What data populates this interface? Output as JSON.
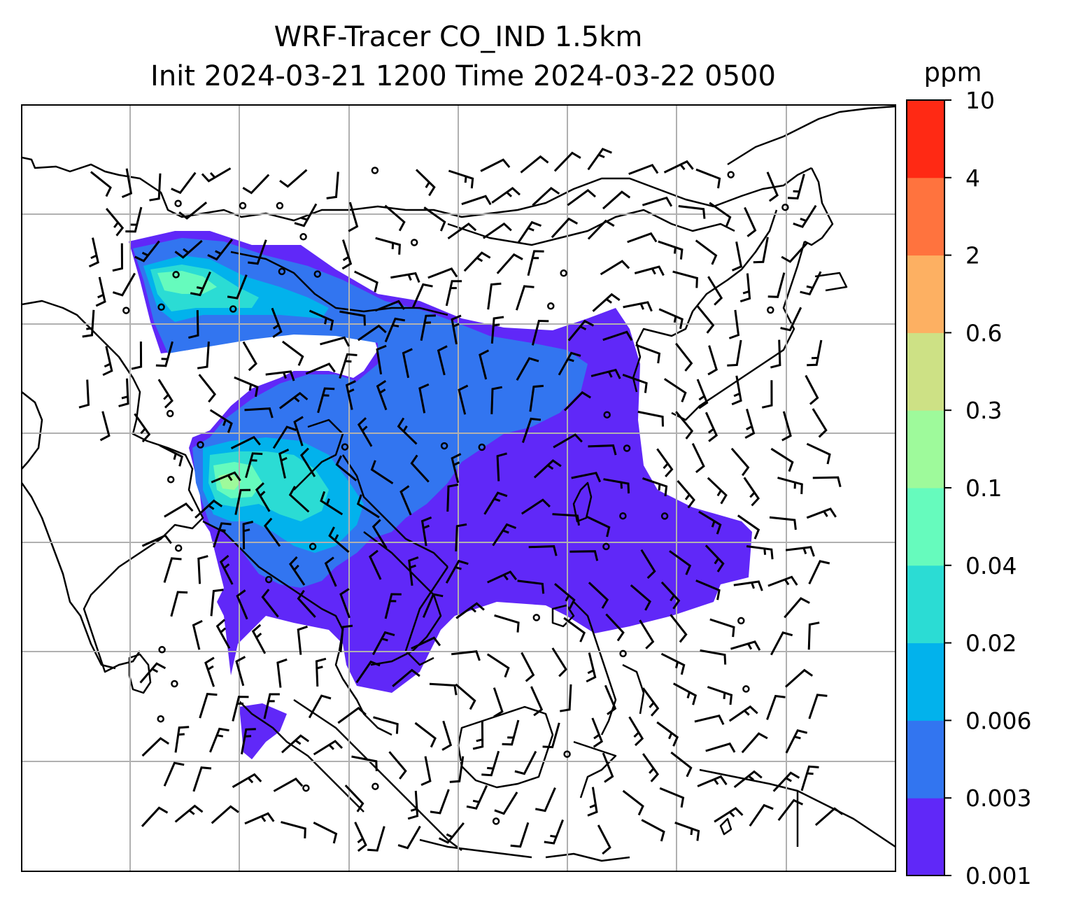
{
  "title": {
    "line1": "WRF-Tracer CO_IND 1.5km",
    "line2": "Init 2024-03-21 1200 Time 2024-03-22 0500"
  },
  "colorbar": {
    "unit": "ppm",
    "levels": [
      "0.001",
      "0.003",
      "0.006",
      "0.02",
      "0.04",
      "0.1",
      "0.3",
      "0.6",
      "2",
      "4",
      "10"
    ],
    "colors": [
      "#6028f8",
      "#3275f0",
      "#02b2ec",
      "#2bdcd4",
      "#66fbbd",
      "#9efa9b",
      "#cde185",
      "#fdb062",
      "#ff733e",
      "#ff2914"
    ]
  },
  "chart_data": {
    "type": "heatmap",
    "title": "WRF-Tracer CO_IND 1.5km",
    "subtitle": "Init 2024-03-21 1200 Time 2024-03-22 0500",
    "variable": "CO_IND",
    "level": "1.5km",
    "init_time": "2024-03-21 1200",
    "valid_time": "2024-03-22 0500",
    "units": "ppm",
    "contour_levels": [
      0.001,
      0.003,
      0.006,
      0.02,
      0.04,
      0.1,
      0.3,
      0.6,
      2,
      4,
      10
    ],
    "colormap": "rainbow",
    "grid": true,
    "overlays": [
      "coastlines",
      "country borders",
      "wind barbs",
      "gridlines"
    ]
  }
}
